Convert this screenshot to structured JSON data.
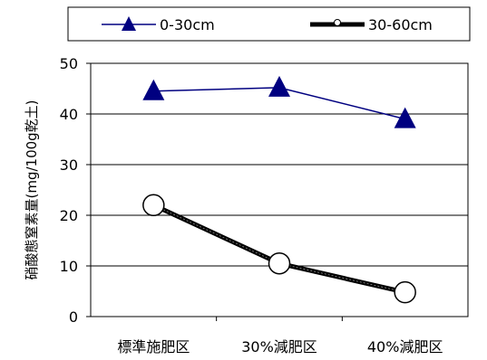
{
  "chart_data": {
    "type": "line",
    "categories": [
      "標準施肥区",
      "30%減肥区",
      "40%減肥区"
    ],
    "series": [
      {
        "name": "0-30cm",
        "values": [
          44.5,
          45.2,
          39.0
        ],
        "color": "#000080",
        "marker": "filled-triangle"
      },
      {
        "name": "30-60cm",
        "values": [
          22.0,
          10.5,
          4.8
        ],
        "color": "#000000",
        "marker": "open-circle"
      }
    ],
    "title": "",
    "xlabel": "",
    "ylabel": "硝酸態窒素量(mg/100g乾土)",
    "ylim": [
      0,
      50
    ],
    "yticks": [
      0,
      10,
      20,
      30,
      40,
      50
    ],
    "grid": true,
    "legend_position": "top"
  }
}
